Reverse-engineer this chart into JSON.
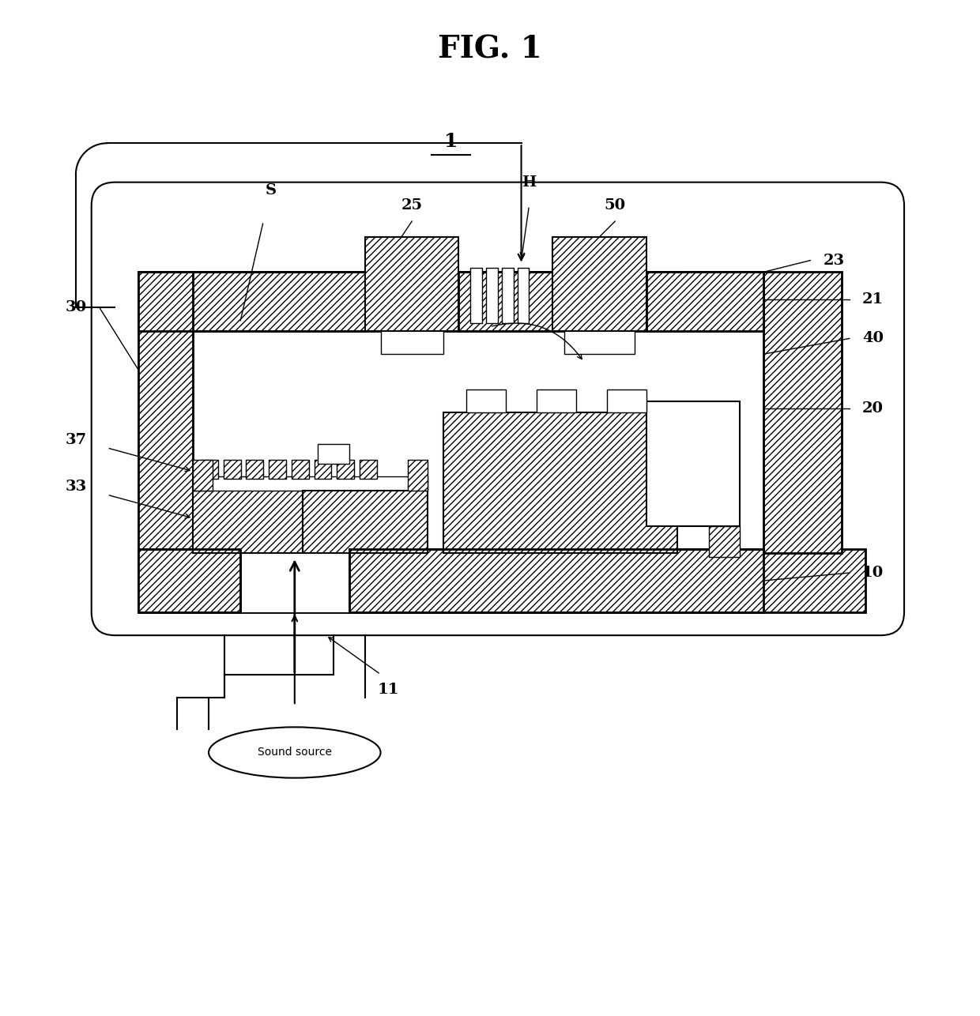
{
  "title": "FIG. 1",
  "bg_color": "#ffffff",
  "lc": "#000000",
  "labels": {
    "fig_num": "1",
    "S": "S",
    "H": "H",
    "25": "25",
    "50": "50",
    "23": "23",
    "21": "21",
    "40": "40",
    "30": "30",
    "37": "37",
    "33": "33",
    "20": "20",
    "10": "10",
    "11": "11",
    "sound": "Sound source"
  },
  "figsize": [
    12.4,
    12.86
  ],
  "dpi": 100
}
